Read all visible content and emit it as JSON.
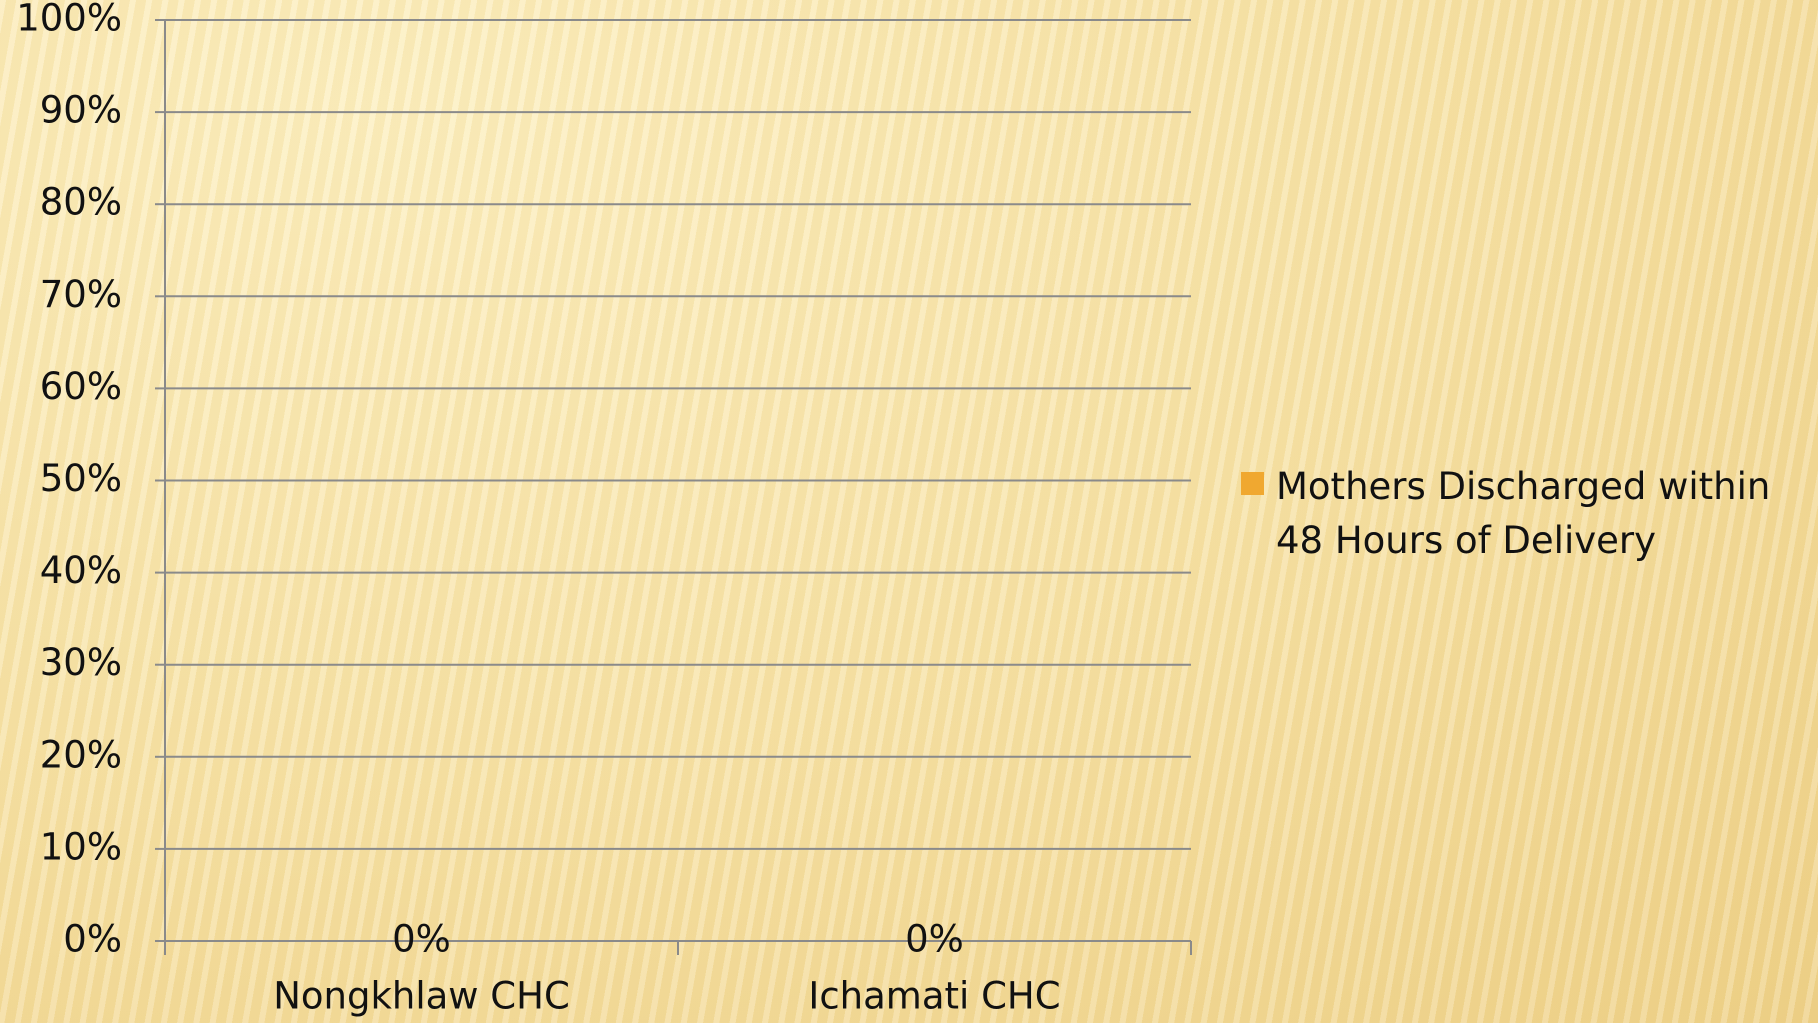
{
  "chart_data": {
    "type": "bar",
    "categories": [
      "Nongkhlaw CHC",
      "Ichamati CHC"
    ],
    "series": [
      {
        "name": "Mothers Discharged within 48 Hours of Delivery",
        "color": "#f0a830",
        "values": [
          0,
          0
        ],
        "value_labels": [
          "0%",
          "0%"
        ]
      }
    ],
    "ylim": [
      0,
      100
    ],
    "yticks": [
      {
        "value": 0,
        "label": "0%"
      },
      {
        "value": 10,
        "label": "10%"
      },
      {
        "value": 20,
        "label": "20%"
      },
      {
        "value": 30,
        "label": "30%"
      },
      {
        "value": 40,
        "label": "40%"
      },
      {
        "value": 50,
        "label": "50%"
      },
      {
        "value": 60,
        "label": "60%"
      },
      {
        "value": 70,
        "label": "70%"
      },
      {
        "value": 80,
        "label": "80%"
      },
      {
        "value": 90,
        "label": "90%"
      },
      {
        "value": 100,
        "label": "100%"
      }
    ],
    "grid": true,
    "legend": "right"
  }
}
